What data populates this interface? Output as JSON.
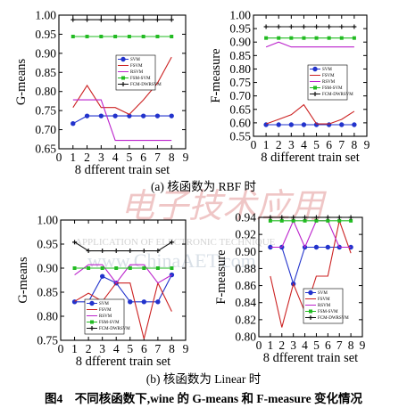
{
  "figure_caption": "图4　不同核函数下,wine 的 G-means 和 F-measure 变化情况",
  "row_captions": [
    "(a) 核函数为 RBF 时",
    "(b) 核函数为 Linear 时"
  ],
  "watermark": {
    "chinese": "电子技术应用",
    "line1": "APPLICATION OF ELECTRONIC TECHNIQUE",
    "line2": "www.ChinaAET.com"
  },
  "series_styles": [
    {
      "name": "SVM",
      "color": "#2233cc",
      "marker": "circle"
    },
    {
      "name": "FSVM",
      "color": "#cc2222",
      "marker": "none"
    },
    {
      "name": "RSVM",
      "color": "#bb22cc",
      "marker": "none"
    },
    {
      "name": "FSM-SVM",
      "color": "#22bb22",
      "marker": "square"
    },
    {
      "name": "FCM-DWRSVM",
      "color": "#111111",
      "marker": "plus"
    }
  ],
  "chart_data": [
    {
      "type": "line",
      "title": "",
      "xlabel": "8 dfferent train set",
      "ylabel": "G-means",
      "xlim": [
        0,
        9
      ],
      "ylim": [
        0.65,
        1.0
      ],
      "xticks": [
        0,
        1,
        2,
        3,
        4,
        5,
        6,
        7,
        8,
        9
      ],
      "yticks": [
        0.65,
        0.7,
        0.75,
        0.8,
        0.85,
        0.9,
        0.95,
        1.0
      ],
      "ytick_labels": [
        "0.65",
        "0.70",
        "0.75",
        "0.80",
        "0.85",
        "0.90",
        "0.95",
        "1.00"
      ],
      "legend_position": "upper-left",
      "x": [
        1,
        2,
        3,
        4,
        5,
        6,
        7,
        8
      ],
      "series": [
        {
          "name": "SVM",
          "values": [
            0.716,
            0.736,
            0.736,
            0.736,
            0.736,
            0.736,
            0.736,
            0.736
          ]
        },
        {
          "name": "FSVM",
          "values": [
            0.758,
            0.816,
            0.758,
            0.758,
            0.74,
            0.778,
            0.822,
            0.89
          ]
        },
        {
          "name": "RSVM",
          "values": [
            0.778,
            0.778,
            0.778,
            0.672,
            0.672,
            0.672,
            0.672,
            0.672
          ]
        },
        {
          "name": "FSM-SVM",
          "values": [
            0.944,
            0.944,
            0.944,
            0.944,
            0.944,
            0.944,
            0.944,
            0.944
          ]
        },
        {
          "name": "FCM-DWRSVM",
          "values": [
            0.988,
            0.988,
            0.988,
            0.988,
            0.988,
            0.988,
            0.988,
            0.988
          ]
        }
      ]
    },
    {
      "type": "line",
      "title": "",
      "xlabel": "8 different train set",
      "ylabel": "F-measure",
      "xlim": [
        0,
        9
      ],
      "ylim": [
        0.55,
        1.0
      ],
      "xticks": [
        0,
        1,
        2,
        3,
        4,
        5,
        6,
        7,
        8,
        9
      ],
      "yticks": [
        0.55,
        0.6,
        0.65,
        0.7,
        0.75,
        0.8,
        0.85,
        0.9,
        0.95,
        1.0
      ],
      "ytick_labels": [
        "0.55",
        "0.60",
        "0.65",
        "0.70",
        "0.75",
        "0.80",
        "0.85",
        "0.90",
        "0.95",
        "1.00"
      ],
      "legend_position": "middle-left",
      "x": [
        1,
        2,
        3,
        4,
        5,
        6,
        7,
        8
      ],
      "series": [
        {
          "name": "SVM",
          "values": [
            0.593,
            0.593,
            0.593,
            0.593,
            0.593,
            0.593,
            0.593,
            0.593
          ]
        },
        {
          "name": "FSVM",
          "values": [
            0.596,
            0.613,
            0.63,
            0.667,
            0.596,
            0.596,
            0.613,
            0.643
          ]
        },
        {
          "name": "RSVM",
          "values": [
            0.882,
            0.9,
            0.882,
            0.882,
            0.882,
            0.882,
            0.882,
            0.882
          ]
        },
        {
          "name": "FSM-SVM",
          "values": [
            0.915,
            0.915,
            0.915,
            0.915,
            0.915,
            0.915,
            0.915,
            0.915
          ]
        },
        {
          "name": "FCM-DWRSVM",
          "values": [
            0.957,
            0.957,
            0.957,
            0.957,
            0.957,
            0.957,
            0.957,
            0.957
          ]
        }
      ]
    },
    {
      "type": "line",
      "title": "",
      "xlabel": "8 dfferent train set",
      "ylabel": "G-means",
      "xlim": [
        0,
        9
      ],
      "ylim": [
        0.75,
        1.0
      ],
      "xticks": [
        0,
        1,
        2,
        3,
        4,
        5,
        6,
        7,
        8,
        9
      ],
      "yticks": [
        0.75,
        0.8,
        0.85,
        0.9,
        0.95,
        1.0
      ],
      "ytick_labels": [
        "0.75",
        "0.80",
        "0.85",
        "0.90",
        "0.95",
        "1.00"
      ],
      "legend_position": "lower-left",
      "x": [
        1,
        2,
        3,
        4,
        5,
        6,
        7,
        8
      ],
      "series": [
        {
          "name": "SVM",
          "values": [
            0.83,
            0.83,
            0.883,
            0.869,
            0.83,
            0.83,
            0.83,
            0.886
          ]
        },
        {
          "name": "FSVM",
          "values": [
            0.831,
            0.848,
            0.831,
            0.869,
            0.869,
            0.753,
            0.869,
            0.81
          ]
        },
        {
          "name": "RSVM",
          "values": [
            0.886,
            0.907,
            0.907,
            0.869,
            0.907,
            0.907,
            0.869,
            0.886
          ]
        },
        {
          "name": "FSM-SVM",
          "values": [
            0.9,
            0.9,
            0.9,
            0.9,
            0.9,
            0.9,
            0.9,
            0.9
          ]
        },
        {
          "name": "FCM-DWRSVM",
          "values": [
            0.954,
            0.936,
            0.936,
            0.936,
            0.936,
            0.936,
            0.936,
            0.954
          ]
        }
      ]
    },
    {
      "type": "line",
      "title": "",
      "xlabel": "8 dfferent train set",
      "ylabel": "F-measure",
      "xlim": [
        0,
        9
      ],
      "ylim": [
        0.8,
        0.94
      ],
      "xticks": [
        0,
        1,
        2,
        3,
        4,
        5,
        6,
        7,
        8,
        9
      ],
      "yticks": [
        0.8,
        0.82,
        0.84,
        0.86,
        0.88,
        0.9,
        0.92,
        0.94
      ],
      "ytick_labels": [
        "0.80",
        "0.82",
        "0.84",
        "0.86",
        "0.88",
        "0.90",
        "0.92",
        "0.94"
      ],
      "legend_position": "lower-right",
      "x": [
        1,
        2,
        3,
        4,
        5,
        6,
        7,
        8
      ],
      "series": [
        {
          "name": "SVM",
          "values": [
            0.905,
            0.905,
            0.862,
            0.905,
            0.905,
            0.905,
            0.905,
            0.905
          ]
        },
        {
          "name": "FSVM",
          "values": [
            0.871,
            0.811,
            0.862,
            0.829,
            0.871,
            0.871,
            0.936,
            0.898
          ]
        },
        {
          "name": "RSVM",
          "values": [
            0.905,
            0.905,
            0.936,
            0.905,
            0.936,
            0.936,
            0.905,
            0.905
          ]
        },
        {
          "name": "FSM-SVM",
          "values": [
            0.936,
            0.936,
            0.936,
            0.936,
            0.936,
            0.936,
            0.936,
            0.936
          ]
        },
        {
          "name": "FCM-DWRSVM",
          "values": [
            0.94,
            0.94,
            0.94,
            0.94,
            0.94,
            0.94,
            0.94,
            0.94
          ]
        }
      ]
    }
  ]
}
